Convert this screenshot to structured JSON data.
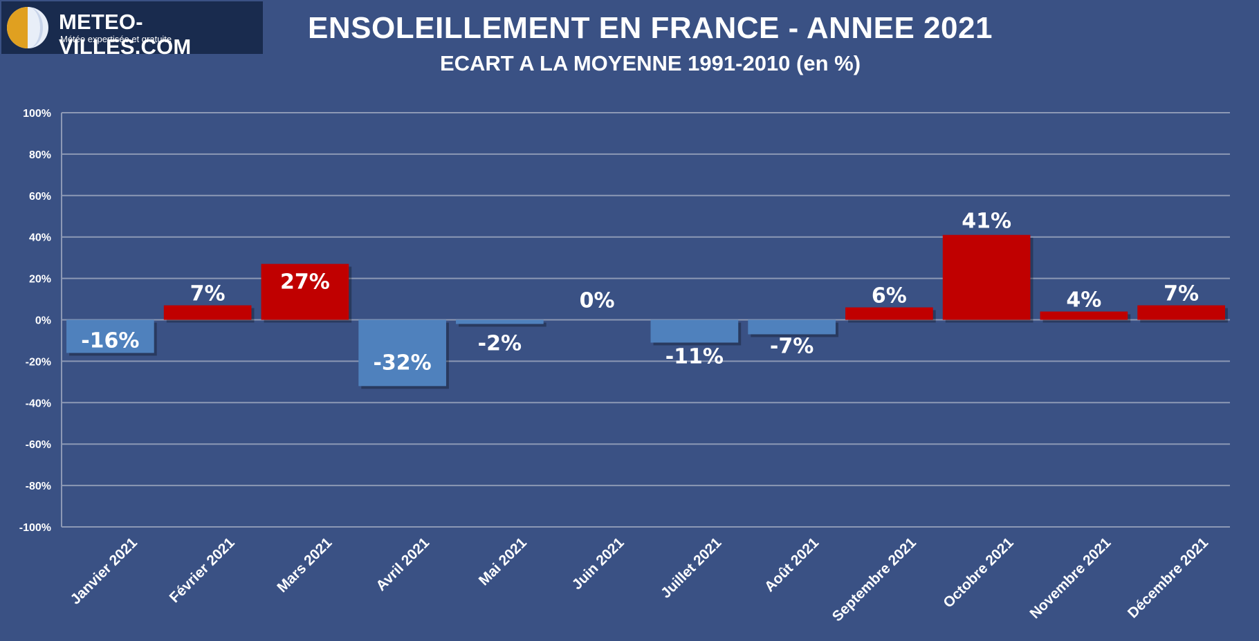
{
  "logo": {
    "name": "METEO-VILLES.COM",
    "tagline": "Météo expertisée et gratuite"
  },
  "chart_data": {
    "type": "bar",
    "title": "ENSOLEILLEMENT EN FRANCE - ANNEE 2021",
    "subtitle": "ECART A LA MOYENNE 1991-2010 (en %)",
    "xlabel": "",
    "ylabel": "",
    "categories": [
      "Janvier 2021",
      "Février 2021",
      "Mars 2021",
      "Avril 2021",
      "Mai 2021",
      "Juin 2021",
      "Juillet 2021",
      "Août 2021",
      "Septembre 2021",
      "Octobre 2021",
      "Novembre 2021",
      "Décembre 2021"
    ],
    "values": [
      -16,
      7,
      27,
      -32,
      -2,
      0,
      -11,
      -7,
      6,
      41,
      4,
      7
    ],
    "data_labels": [
      "-16%",
      "7%",
      "27%",
      "-32%",
      "-2%",
      "0%",
      "-11%",
      "-7%",
      "6%",
      "41%",
      "4%",
      "7%"
    ],
    "ylim": [
      -100,
      100
    ],
    "yticks": [
      100,
      80,
      60,
      40,
      20,
      0,
      -20,
      -40,
      -60,
      -80,
      -100
    ],
    "ytick_labels": [
      "100%",
      "80%",
      "60%",
      "40%",
      "20%",
      "0%",
      "-20%",
      "-40%",
      "-60%",
      "-80%",
      "-100%"
    ],
    "grid": true,
    "colors": {
      "positive": "#c00000",
      "negative": "#4f81bd",
      "background": "#3a5184",
      "gridline": "#8d99b5",
      "text": "#ffffff"
    }
  }
}
